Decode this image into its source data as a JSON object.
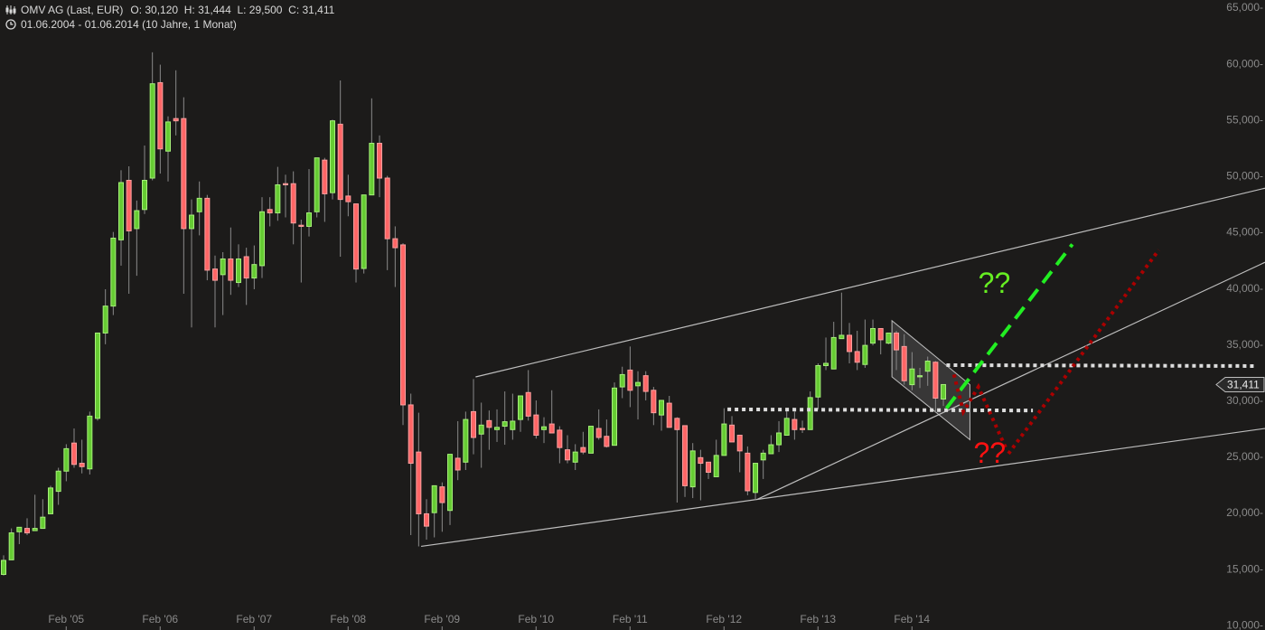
{
  "header": {
    "title": "OMV AG (Last, EUR)",
    "ohlc": "O: 30,120  H: 31,444  L: 29,500  C: 31,411",
    "range": "01.06.2004 - 01.06.2014 (10 Jahre, 1 Monat)",
    "icons": [
      "candlestick-chart-icon",
      "clock-icon"
    ]
  },
  "chart_data": {
    "type": "candlestick",
    "interval": "monthly",
    "colors": {
      "up": "#66cc33",
      "up_border": "#a6f07a",
      "down": "#ff6666",
      "down_border": "#ffa0a0",
      "wick": "#8a8a8a",
      "background": "#1c1b1a"
    },
    "ylim": [
      10,
      65
    ],
    "y_ticks": [
      "65,000",
      "60,000",
      "55,000",
      "50,000",
      "45,000",
      "40,000",
      "35,000",
      "30,000",
      "25,000",
      "20,000",
      "15,000",
      "10,000"
    ],
    "y_tick_values": [
      65,
      60,
      55,
      50,
      45,
      40,
      35,
      30,
      25,
      20,
      15,
      10
    ],
    "x_ticks": [
      "Feb '05",
      "Feb '06",
      "Feb '07",
      "Feb '08",
      "Feb '09",
      "Feb '10",
      "Feb '11",
      "Feb '12",
      "Feb '13",
      "Feb '14"
    ],
    "x_tick_years": [
      2005.083,
      2006.083,
      2007.083,
      2008.083,
      2009.083,
      2010.083,
      2011.083,
      2012.083,
      2013.083,
      2014.083
    ],
    "last_price_label": "31,411",
    "last_price": 31.411,
    "months": [
      "2004-06",
      "2004-07",
      "2004-08",
      "2004-09",
      "2004-10",
      "2004-11",
      "2004-12",
      "2005-01",
      "2005-02",
      "2005-03",
      "2005-04",
      "2005-05",
      "2005-06",
      "2005-07",
      "2005-08",
      "2005-09",
      "2005-10",
      "2005-11",
      "2005-12",
      "2006-01",
      "2006-02",
      "2006-03",
      "2006-04",
      "2006-05",
      "2006-06",
      "2006-07",
      "2006-08",
      "2006-09",
      "2006-10",
      "2006-11",
      "2006-12",
      "2007-01",
      "2007-02",
      "2007-03",
      "2007-04",
      "2007-05",
      "2007-06",
      "2007-07",
      "2007-08",
      "2007-09",
      "2007-10",
      "2007-11",
      "2007-12",
      "2008-01",
      "2008-02",
      "2008-03",
      "2008-04",
      "2008-05",
      "2008-06",
      "2008-07",
      "2008-08",
      "2008-09",
      "2008-10",
      "2008-11",
      "2008-12",
      "2009-01",
      "2009-02",
      "2009-03",
      "2009-04",
      "2009-05",
      "2009-06",
      "2009-07",
      "2009-08",
      "2009-09",
      "2009-10",
      "2009-11",
      "2009-12",
      "2010-01",
      "2010-02",
      "2010-03",
      "2010-04",
      "2010-05",
      "2010-06",
      "2010-07",
      "2010-08",
      "2010-09",
      "2010-10",
      "2010-11",
      "2010-12",
      "2011-01",
      "2011-02",
      "2011-03",
      "2011-04",
      "2011-05",
      "2011-06",
      "2011-07",
      "2011-08",
      "2011-09",
      "2011-10",
      "2011-11",
      "2011-12",
      "2012-01",
      "2012-02",
      "2012-03",
      "2012-04",
      "2012-05",
      "2012-06",
      "2012-07",
      "2012-08",
      "2012-09",
      "2012-10",
      "2012-11",
      "2012-12",
      "2013-01",
      "2013-02",
      "2013-03",
      "2013-04",
      "2013-05",
      "2013-06",
      "2013-07",
      "2013-08",
      "2013-09",
      "2013-10",
      "2013-11",
      "2013-12",
      "2014-01",
      "2014-02",
      "2014-03",
      "2014-04",
      "2014-05",
      "2014-06"
    ],
    "ohlc": [
      [
        14.5,
        16.2,
        14.4,
        15.75
      ],
      [
        15.8,
        18.6,
        15.8,
        18.2
      ],
      [
        18.3,
        18.7,
        17.2,
        18.7
      ],
      [
        18.6,
        19.5,
        18.0,
        18.2
      ],
      [
        18.4,
        21.6,
        18.4,
        18.6
      ],
      [
        18.6,
        21.2,
        18.6,
        19.6
      ],
      [
        19.9,
        22.4,
        19.9,
        22.2
      ],
      [
        21.9,
        24.0,
        20.7,
        23.7
      ],
      [
        23.7,
        26.1,
        22.8,
        25.7
      ],
      [
        26.2,
        27.5,
        24.0,
        24.3
      ],
      [
        24.4,
        26.5,
        23.5,
        24.1
      ],
      [
        23.9,
        29.0,
        23.4,
        28.6
      ],
      [
        28.4,
        36.0,
        28.2,
        36.0
      ],
      [
        36.0,
        39.9,
        35.0,
        38.4
      ],
      [
        38.4,
        45.0,
        37.6,
        44.45
      ],
      [
        44.3,
        50.5,
        42.0,
        49.4
      ],
      [
        49.6,
        50.85,
        39.5,
        45.1
      ],
      [
        45.3,
        47.8,
        41.1,
        46.9
      ],
      [
        47.0,
        52.7,
        46.6,
        49.6
      ],
      [
        49.8,
        61.0,
        49.6,
        58.2
      ],
      [
        58.3,
        59.9,
        50.2,
        52.4
      ],
      [
        52.2,
        55.3,
        49.5,
        54.8
      ],
      [
        55.1,
        59.4,
        53.6,
        54.9
      ],
      [
        55.1,
        57.0,
        39.5,
        45.3
      ],
      [
        45.3,
        47.9,
        36.5,
        46.5
      ],
      [
        46.8,
        49.5,
        44.7,
        48.0
      ],
      [
        48.0,
        48.3,
        40.7,
        41.6
      ],
      [
        41.7,
        42.9,
        36.5,
        40.7
      ],
      [
        41.2,
        43.2,
        37.6,
        42.6
      ],
      [
        42.6,
        45.4,
        39.4,
        40.7
      ],
      [
        40.5,
        43.9,
        40.1,
        42.6
      ],
      [
        42.8,
        43.6,
        38.5,
        40.9
      ],
      [
        40.9,
        43.8,
        39.9,
        42.1
      ],
      [
        42.0,
        48.1,
        40.9,
        46.8
      ],
      [
        47.0,
        48.1,
        45.5,
        46.7
      ],
      [
        46.7,
        50.8,
        46.0,
        49.2
      ],
      [
        49.3,
        50.1,
        46.3,
        49.2
      ],
      [
        49.3,
        50.4,
        43.9,
        45.8
      ],
      [
        45.6,
        46.1,
        40.5,
        45.5
      ],
      [
        45.5,
        50.6,
        44.6,
        46.7
      ],
      [
        46.8,
        51.6,
        46.3,
        51.6
      ],
      [
        51.4,
        51.6,
        45.9,
        48.4
      ],
      [
        48.5,
        55.0,
        47.9,
        54.9
      ],
      [
        54.6,
        58.5,
        42.8,
        47.9
      ],
      [
        48.2,
        50.1,
        46.4,
        47.7
      ],
      [
        47.5,
        47.5,
        40.5,
        41.7
      ],
      [
        41.75,
        48.3,
        41.3,
        48.3
      ],
      [
        48.3,
        56.9,
        48.3,
        52.9
      ],
      [
        52.9,
        53.6,
        48.1,
        49.8
      ],
      [
        49.8,
        50.0,
        41.6,
        44.4
      ],
      [
        44.4,
        45.5,
        40.1,
        43.6
      ],
      [
        43.85,
        44.0,
        27.8,
        29.6
      ],
      [
        29.6,
        30.6,
        18.0,
        24.4
      ],
      [
        25.4,
        28.9,
        17.0,
        19.9
      ],
      [
        19.9,
        21.2,
        17.6,
        18.8
      ],
      [
        20.0,
        22.4,
        17.8,
        22.4
      ],
      [
        22.3,
        22.7,
        18.3,
        20.9
      ],
      [
        20.2,
        25.2,
        18.9,
        25.2
      ],
      [
        24.85,
        28.15,
        22.9,
        23.8
      ],
      [
        24.5,
        29.0,
        23.8,
        28.3
      ],
      [
        29.0,
        31.9,
        25.2,
        26.7
      ],
      [
        27.0,
        29.8,
        24.0,
        27.8
      ],
      [
        28.2,
        29.1,
        25.6,
        27.6
      ],
      [
        27.4,
        29.2,
        26.3,
        27.6
      ],
      [
        27.7,
        30.8,
        26.05,
        28.1
      ],
      [
        27.4,
        30.6,
        26.5,
        28.15
      ],
      [
        28.3,
        30.4,
        27.2,
        30.4
      ],
      [
        30.7,
        32.7,
        28.2,
        28.6
      ],
      [
        28.7,
        30.0,
        26.6,
        26.9
      ],
      [
        27.4,
        28.5,
        26.2,
        27.65
      ],
      [
        27.9,
        30.9,
        27.1,
        27.1
      ],
      [
        27.35,
        27.7,
        24.4,
        25.8
      ],
      [
        25.6,
        26.9,
        24.4,
        24.7
      ],
      [
        24.5,
        26.1,
        23.8,
        25.4
      ],
      [
        25.8,
        27.2,
        25.2,
        25.4
      ],
      [
        25.3,
        27.7,
        25.3,
        27.7
      ],
      [
        27.5,
        29.2,
        26.5,
        26.7
      ],
      [
        26.8,
        28.3,
        25.8,
        25.9
      ],
      [
        26.0,
        31.6,
        26.0,
        31.1
      ],
      [
        31.2,
        33.0,
        30.2,
        32.3
      ],
      [
        32.7,
        34.8,
        29.4,
        30.9
      ],
      [
        31.3,
        32.6,
        28.3,
        31.6
      ],
      [
        32.2,
        32.6,
        30.0,
        30.8
      ],
      [
        30.9,
        31.2,
        27.8,
        28.9
      ],
      [
        28.7,
        30.0,
        27.3,
        30.0
      ],
      [
        29.75,
        30.4,
        27.6,
        27.6
      ],
      [
        28.4,
        28.5,
        20.9,
        27.4
      ],
      [
        27.75,
        27.75,
        21.4,
        22.4
      ],
      [
        22.3,
        26.2,
        21.3,
        25.5
      ],
      [
        24.9,
        25.6,
        21.1,
        24.4
      ],
      [
        24.5,
        24.5,
        23.0,
        23.6
      ],
      [
        23.2,
        26.5,
        23.2,
        25.1
      ],
      [
        25.1,
        29.3,
        25.1,
        27.9
      ],
      [
        27.8,
        28.6,
        26.3,
        26.3
      ],
      [
        26.9,
        26.9,
        23.6,
        25.5
      ],
      [
        25.3,
        25.9,
        21.55,
        21.95
      ],
      [
        21.8,
        24.4,
        21.1,
        24.4
      ],
      [
        24.7,
        25.6,
        23.0,
        25.3
      ],
      [
        25.25,
        26.9,
        25.25,
        26.05
      ],
      [
        26.05,
        28.15,
        25.4,
        27.1
      ],
      [
        26.9,
        29.2,
        26.9,
        28.4
      ],
      [
        28.3,
        29.0,
        26.5,
        27.4
      ],
      [
        27.5,
        28.2,
        27.1,
        27.4
      ],
      [
        27.4,
        30.8,
        27.4,
        30.25
      ],
      [
        30.3,
        33.3,
        29.2,
        33.1
      ],
      [
        33.1,
        35.6,
        32.7,
        33.3
      ],
      [
        32.8,
        37.0,
        32.8,
        35.6
      ],
      [
        35.5,
        39.6,
        35.5,
        35.8
      ],
      [
        35.8,
        36.9,
        33.3,
        34.35
      ],
      [
        34.35,
        36.2,
        32.7,
        33.4
      ],
      [
        33.2,
        37.2,
        32.9,
        34.9
      ],
      [
        35.1,
        37.2,
        34.9,
        36.4
      ],
      [
        36.4,
        36.4,
        34.1,
        35.4
      ],
      [
        35.1,
        36.0,
        35.0,
        36.0
      ],
      [
        36.0,
        36.2,
        32.7,
        34.5
      ],
      [
        34.8,
        35.9,
        31.4,
        31.75
      ],
      [
        31.4,
        34.3,
        30.9,
        32.8
      ],
      [
        32.1,
        32.9,
        31.1,
        32.2
      ],
      [
        32.6,
        33.9,
        31.3,
        33.5
      ],
      [
        33.4,
        33.5,
        28.9,
        30.2
      ],
      [
        30.12,
        31.444,
        29.5,
        31.411
      ]
    ],
    "drawings": [
      {
        "name": "upper-channel-line",
        "style": "solid",
        "color": "#bdbdbd",
        "points": [
          [
            2009.44,
            32.09
          ],
          [
            2017.84,
            48.9
          ]
        ]
      },
      {
        "name": "lower-trend-line",
        "style": "solid",
        "color": "#bdbdbd",
        "points": [
          [
            2008.86,
            17.0
          ],
          [
            2017.84,
            27.5
          ]
        ]
      },
      {
        "name": "middle-trend-line",
        "style": "solid",
        "color": "#bdbdbd",
        "points": [
          [
            2012.44,
            21.2
          ],
          [
            2017.84,
            42.3
          ]
        ]
      },
      {
        "name": "resistance-dotted-line",
        "style": "dotted",
        "color": "#dddddd",
        "points": [
          [
            2014.45,
            33.14
          ],
          [
            2017.72,
            33.06
          ]
        ]
      },
      {
        "name": "support-dotted-line",
        "style": "dotted",
        "color": "#dddddd",
        "points": [
          [
            2012.12,
            29.2
          ],
          [
            2015.37,
            29.1
          ]
        ]
      },
      {
        "name": "bull-scenario-line",
        "style": "dashed",
        "color": "#22ee22",
        "points": [
          [
            2014.45,
            29.3
          ],
          [
            2015.79,
            43.9
          ]
        ]
      },
      {
        "name": "bear-scenario-line",
        "style": "dotted-red",
        "color": "#aa0000",
        "points": [
          [
            2014.53,
            32.3
          ],
          [
            2014.63,
            29.0
          ],
          [
            2014.79,
            31.2
          ],
          [
            2015.08,
            25.8
          ]
        ]
      },
      {
        "name": "recovery-scenario-line",
        "style": "dotted-red",
        "color": "#aa0000",
        "points": [
          [
            2015.11,
            25.25
          ],
          [
            2016.71,
            43.4
          ]
        ]
      }
    ],
    "channel_box": {
      "color": "#3a3a3a",
      "points": [
        [
          2013.87,
          37.1
        ],
        [
          2014.7,
          31.4
        ],
        [
          2014.7,
          26.5
        ],
        [
          2013.87,
          32.1
        ]
      ]
    },
    "annotations": [
      {
        "text": "??",
        "color": "#66ee22",
        "at": [
          2014.96,
          40.55
        ]
      },
      {
        "text": "??",
        "color": "#ff1111",
        "at": [
          2014.91,
          25.4
        ]
      }
    ]
  }
}
